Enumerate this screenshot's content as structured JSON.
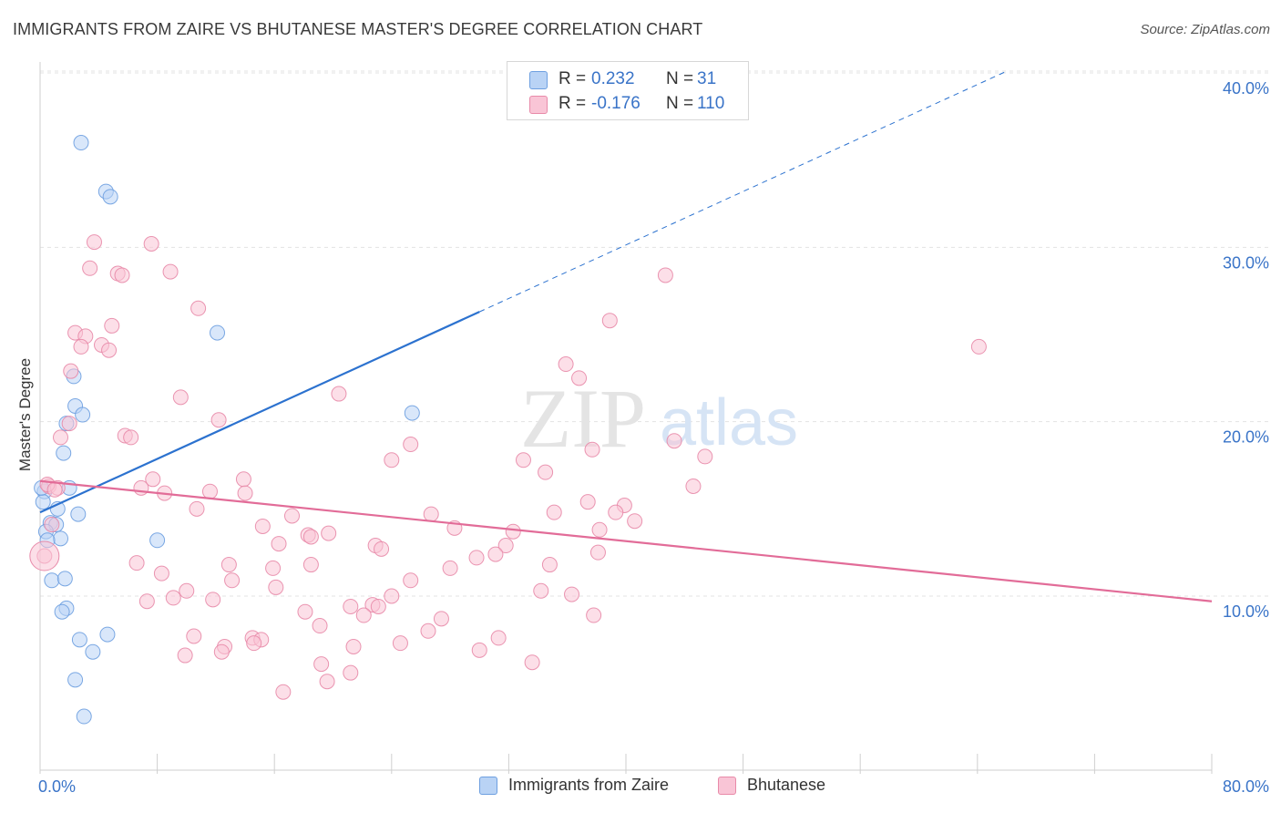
{
  "title": "IMMIGRANTS FROM ZAIRE VS BHUTANESE MASTER'S DEGREE CORRELATION CHART",
  "source": "Source: ZipAtlas.com",
  "colors": {
    "blue_fill": "#b9d3f5",
    "blue_stroke": "#6d9fe0",
    "blue_line": "#2c72cf",
    "pink_fill": "#f9c5d6",
    "pink_stroke": "#e88aa9",
    "pink_line": "#e26c98",
    "tick_label": "#3a74c8",
    "grid": "#e3e3e3"
  },
  "legend": {
    "rows": [
      {
        "r_label": "R =",
        "r_value": "0.232",
        "n_label": "N =",
        "n_value": "31"
      },
      {
        "r_label": "R =",
        "r_value": "-0.176",
        "n_label": "N =",
        "n_value": "110"
      }
    ]
  },
  "chart_data": {
    "type": "scatter",
    "title": "IMMIGRANTS FROM ZAIRE VS BHUTANESE MASTER'S DEGREE CORRELATION CHART",
    "xlabel": "",
    "ylabel": "Master's Degree",
    "xlim": [
      0,
      80
    ],
    "ylim": [
      0,
      42
    ],
    "x_tick_labels": [
      "0.0%",
      "80.0%"
    ],
    "y_ticks": [
      10,
      20,
      30,
      40
    ],
    "y_tick_labels": [
      "10.0%",
      "20.0%",
      "30.0%",
      "40.0%"
    ],
    "grid": true,
    "watermark": {
      "zip": "ZIP",
      "atlas": "atlas"
    },
    "series": [
      {
        "name": "Immigrants from Zaire",
        "color_key": "blue",
        "r": 0.232,
        "n": 31,
        "trend": {
          "x0": 0,
          "y0": 14.8,
          "x1": 30,
          "y1": 26.3,
          "dash_to_x": 66,
          "dash_to_y": 40.1
        },
        "points": [
          [
            2.8,
            36.0
          ],
          [
            4.5,
            33.2
          ],
          [
            4.8,
            32.9
          ],
          [
            12.1,
            25.1
          ],
          [
            2.3,
            22.6
          ],
          [
            25.4,
            20.5
          ],
          [
            2.4,
            20.9
          ],
          [
            2.9,
            20.4
          ],
          [
            1.8,
            19.9
          ],
          [
            1.6,
            18.2
          ],
          [
            2.0,
            16.2
          ],
          [
            0.3,
            16.0
          ],
          [
            0.2,
            15.4
          ],
          [
            1.2,
            15.0
          ],
          [
            0.7,
            14.2
          ],
          [
            1.1,
            14.1
          ],
          [
            2.6,
            14.7
          ],
          [
            0.4,
            13.7
          ],
          [
            1.4,
            13.3
          ],
          [
            0.5,
            13.2
          ],
          [
            8.0,
            13.2
          ],
          [
            0.8,
            10.9
          ],
          [
            1.7,
            11.0
          ],
          [
            1.8,
            9.3
          ],
          [
            1.5,
            9.1
          ],
          [
            2.7,
            7.5
          ],
          [
            4.6,
            7.8
          ],
          [
            3.6,
            6.8
          ],
          [
            2.4,
            5.2
          ],
          [
            3.0,
            3.1
          ],
          [
            0.1,
            16.2
          ]
        ]
      },
      {
        "name": "Bhutanese",
        "color_key": "pink",
        "r": -0.176,
        "n": 110,
        "trend": {
          "x0": 0,
          "y0": 16.6,
          "x1": 80,
          "y1": 9.7
        },
        "points": [
          [
            3.7,
            30.3
          ],
          [
            7.6,
            30.2
          ],
          [
            3.4,
            28.8
          ],
          [
            5.3,
            28.5
          ],
          [
            5.6,
            28.4
          ],
          [
            8.9,
            28.6
          ],
          [
            10.8,
            26.5
          ],
          [
            42.7,
            28.4
          ],
          [
            38.9,
            25.8
          ],
          [
            4.9,
            25.5
          ],
          [
            2.4,
            25.1
          ],
          [
            3.1,
            24.9
          ],
          [
            4.2,
            24.4
          ],
          [
            2.8,
            24.3
          ],
          [
            4.7,
            24.1
          ],
          [
            64.1,
            24.3
          ],
          [
            35.9,
            23.3
          ],
          [
            36.8,
            22.5
          ],
          [
            2.1,
            22.9
          ],
          [
            20.4,
            21.6
          ],
          [
            9.6,
            21.4
          ],
          [
            12.2,
            20.1
          ],
          [
            2.0,
            19.9
          ],
          [
            5.8,
            19.2
          ],
          [
            6.2,
            19.1
          ],
          [
            1.4,
            19.1
          ],
          [
            25.3,
            18.7
          ],
          [
            43.3,
            18.9
          ],
          [
            37.7,
            18.4
          ],
          [
            24.0,
            17.8
          ],
          [
            33.0,
            17.8
          ],
          [
            45.4,
            18.0
          ],
          [
            34.5,
            17.1
          ],
          [
            7.7,
            16.7
          ],
          [
            13.9,
            16.7
          ],
          [
            0.6,
            16.3
          ],
          [
            1.2,
            16.2
          ],
          [
            6.9,
            16.2
          ],
          [
            8.5,
            15.9
          ],
          [
            11.6,
            16.0
          ],
          [
            14.0,
            15.9
          ],
          [
            44.6,
            16.3
          ],
          [
            37.4,
            15.4
          ],
          [
            39.9,
            15.2
          ],
          [
            10.7,
            15.0
          ],
          [
            26.7,
            14.7
          ],
          [
            17.2,
            14.6
          ],
          [
            35.1,
            14.8
          ],
          [
            39.3,
            14.8
          ],
          [
            40.6,
            14.3
          ],
          [
            15.2,
            14.0
          ],
          [
            28.3,
            13.9
          ],
          [
            32.3,
            13.7
          ],
          [
            19.7,
            13.6
          ],
          [
            38.2,
            13.8
          ],
          [
            18.3,
            13.5
          ],
          [
            16.3,
            13.0
          ],
          [
            18.5,
            13.4
          ],
          [
            22.9,
            12.9
          ],
          [
            23.3,
            12.7
          ],
          [
            31.8,
            12.9
          ],
          [
            29.8,
            12.2
          ],
          [
            31.1,
            12.4
          ],
          [
            38.1,
            12.5
          ],
          [
            6.6,
            11.9
          ],
          [
            12.9,
            11.8
          ],
          [
            15.9,
            11.6
          ],
          [
            18.5,
            11.8
          ],
          [
            28.0,
            11.6
          ],
          [
            34.8,
            11.8
          ],
          [
            8.3,
            11.3
          ],
          [
            13.1,
            10.9
          ],
          [
            25.3,
            10.9
          ],
          [
            16.1,
            10.5
          ],
          [
            10.0,
            10.3
          ],
          [
            34.2,
            10.3
          ],
          [
            36.3,
            10.1
          ],
          [
            9.1,
            9.9
          ],
          [
            11.8,
            9.8
          ],
          [
            24.0,
            10.0
          ],
          [
            7.3,
            9.7
          ],
          [
            21.2,
            9.4
          ],
          [
            22.7,
            9.5
          ],
          [
            23.1,
            9.4
          ],
          [
            18.1,
            9.1
          ],
          [
            22.1,
            8.9
          ],
          [
            27.4,
            8.7
          ],
          [
            37.8,
            8.9
          ],
          [
            19.1,
            8.3
          ],
          [
            26.5,
            8.0
          ],
          [
            10.5,
            7.7
          ],
          [
            14.5,
            7.6
          ],
          [
            15.1,
            7.5
          ],
          [
            31.3,
            7.6
          ],
          [
            14.6,
            7.3
          ],
          [
            12.6,
            7.1
          ],
          [
            21.4,
            7.1
          ],
          [
            24.6,
            7.3
          ],
          [
            30.0,
            6.9
          ],
          [
            12.4,
            6.8
          ],
          [
            9.9,
            6.6
          ],
          [
            19.2,
            6.1
          ],
          [
            33.6,
            6.2
          ],
          [
            21.2,
            5.6
          ],
          [
            19.6,
            5.1
          ],
          [
            16.6,
            4.5
          ],
          [
            0.3,
            12.3
          ],
          [
            0.5,
            16.4
          ],
          [
            1.0,
            16.1
          ],
          [
            0.8,
            14.1
          ]
        ]
      }
    ]
  },
  "bottom_legend": [
    {
      "label": "Immigrants from Zaire"
    },
    {
      "label": "Bhutanese"
    }
  ]
}
